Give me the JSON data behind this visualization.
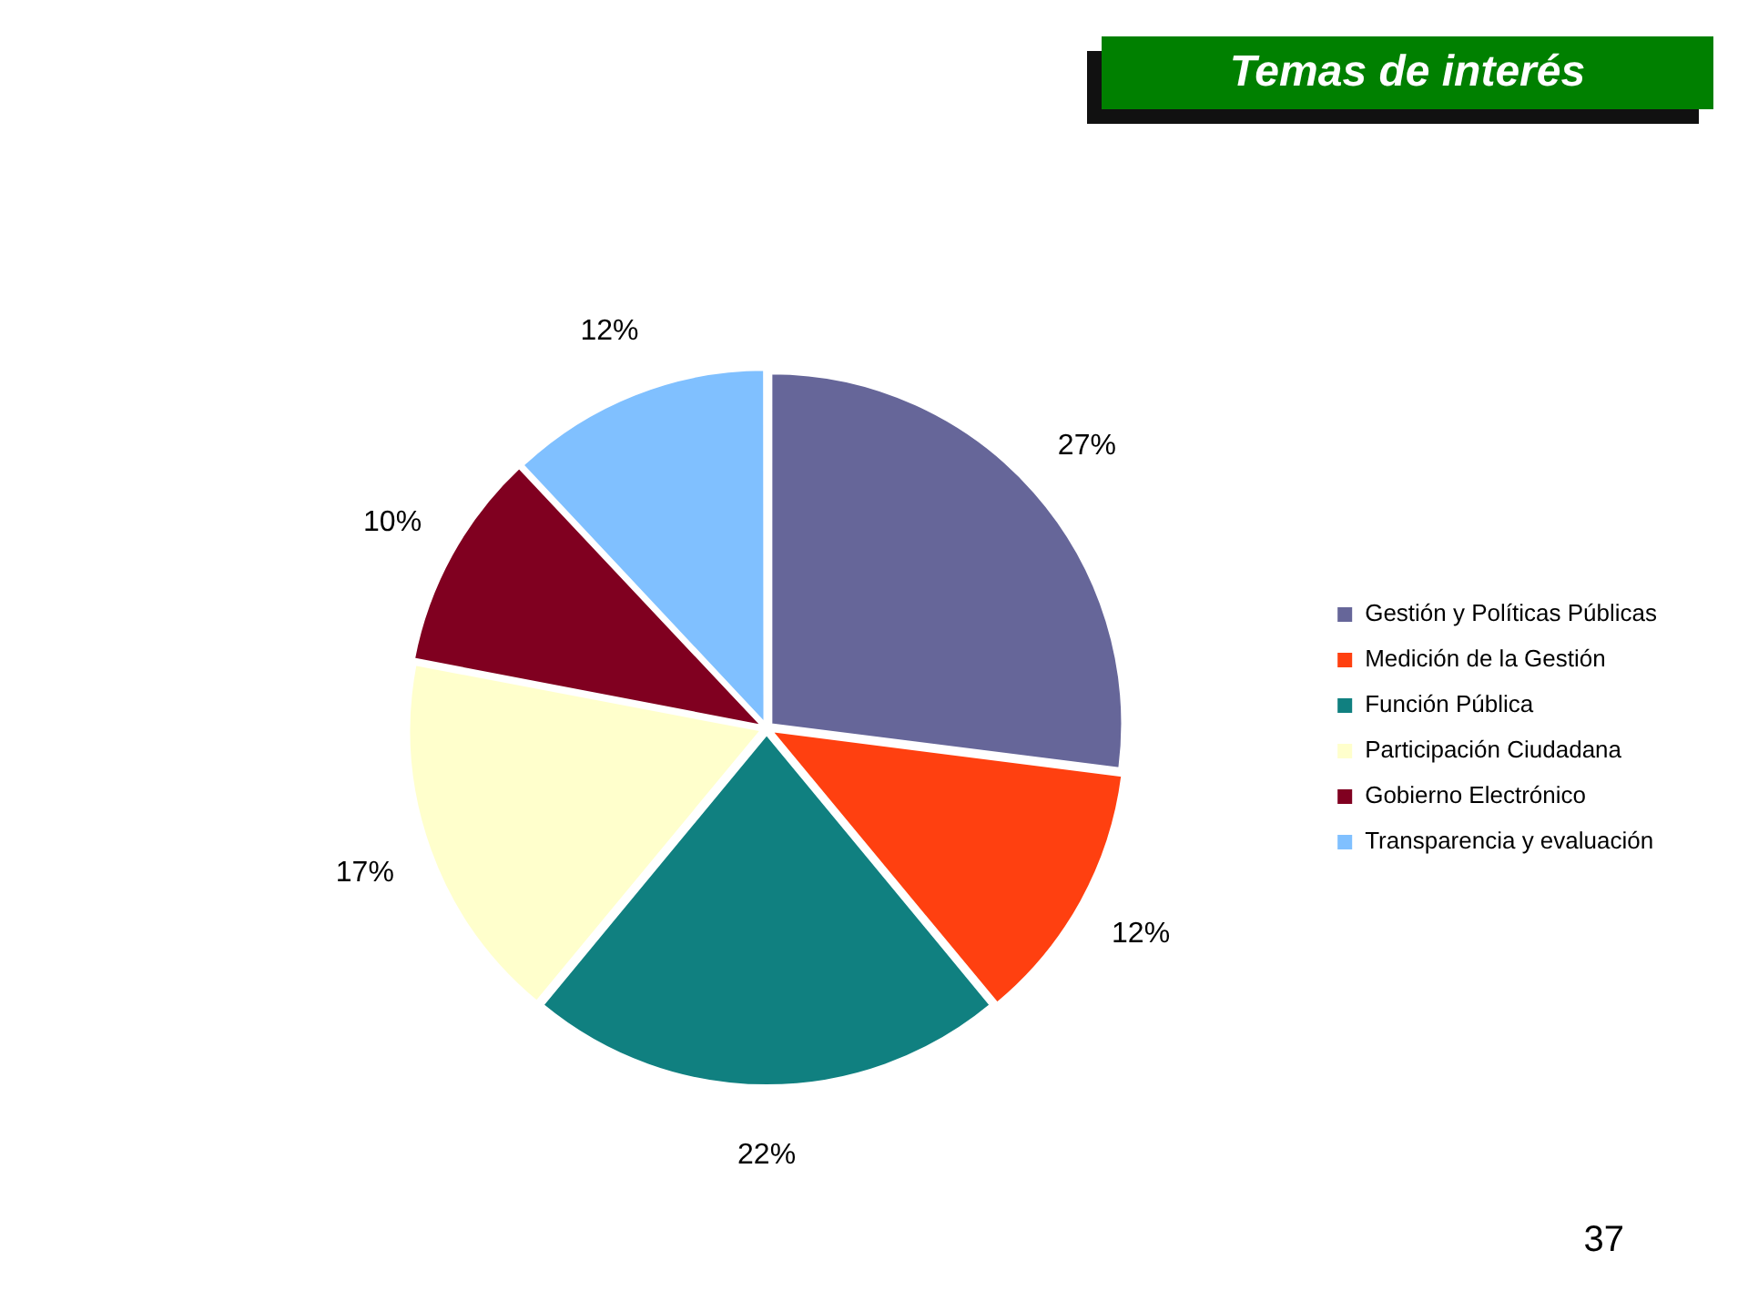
{
  "chart_data": {
    "type": "pie",
    "title": "Temas de interés",
    "categories": [
      "Gestión y Políticas Públicas",
      "Medición de la Gestión",
      "Función Pública",
      "Participación Ciudadana",
      "Gobierno Electrónico",
      "Transparencia y evaluación"
    ],
    "values": [
      27,
      12,
      22,
      17,
      10,
      12
    ],
    "colors": [
      "#666699",
      "#ff4010",
      "#108080",
      "#ffffcc",
      "#800020",
      "#80c0ff"
    ],
    "value_labels": [
      "27%",
      "12%",
      "22%",
      "17%",
      "10%",
      "12%"
    ],
    "legend": "right",
    "annotations": [
      "37"
    ]
  }
}
